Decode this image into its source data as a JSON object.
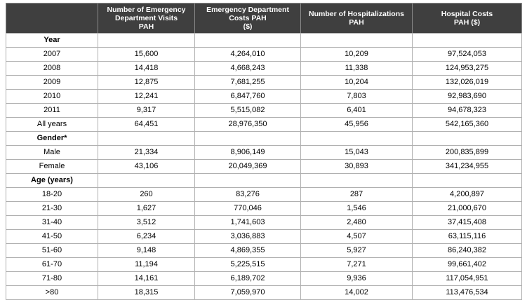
{
  "colors": {
    "header_bg": "#3f3f3f",
    "header_text": "#ffffff",
    "border": "#b0b0b0",
    "body_text": "#000000"
  },
  "table": {
    "columns": [
      {
        "label": ""
      },
      {
        "label": "Number of Emergency\nDepartment Visits\nPAH"
      },
      {
        "label": "Emergency Department\nCosts PAH\n($)"
      },
      {
        "label": "Number of Hospitalizations\nPAH"
      },
      {
        "label": "Hospital Costs\nPAH ($)"
      }
    ],
    "rows": [
      {
        "type": "section",
        "label": "Year",
        "values": [
          "",
          "",
          "",
          ""
        ]
      },
      {
        "type": "data",
        "label": "2007",
        "values": [
          "15,600",
          "4,264,010",
          "10,209",
          "97,524,053"
        ]
      },
      {
        "type": "data",
        "label": "2008",
        "values": [
          "14,418",
          "4,668,243",
          "11,338",
          "124,953,275"
        ]
      },
      {
        "type": "data",
        "label": "2009",
        "values": [
          "12,875",
          "7,681,255",
          "10,204",
          "132,026,019"
        ]
      },
      {
        "type": "data",
        "label": "2010",
        "values": [
          "12,241",
          "6,847,760",
          "7,803",
          "92,983,690"
        ]
      },
      {
        "type": "data",
        "label": "2011",
        "values": [
          "9,317",
          "5,515,082",
          "6,401",
          "94,678,323"
        ]
      },
      {
        "type": "data",
        "label": "All years",
        "values": [
          "64,451",
          "28,976,350",
          "45,956",
          "542,165,360"
        ]
      },
      {
        "type": "section",
        "label": "Gender*",
        "values": [
          "",
          "",
          "",
          ""
        ]
      },
      {
        "type": "data",
        "label": "Male",
        "values": [
          "21,334",
          "8,906,149",
          "15,043",
          "200,835,899"
        ]
      },
      {
        "type": "data",
        "label": "Female",
        "values": [
          "43,106",
          "20,049,369",
          "30,893",
          "341,234,955"
        ]
      },
      {
        "type": "section",
        "label": "Age (years)",
        "values": [
          "",
          "",
          "",
          ""
        ]
      },
      {
        "type": "data",
        "label": "18-20",
        "values": [
          "260",
          "83,276",
          "287",
          "4,200,897"
        ]
      },
      {
        "type": "data",
        "label": "21-30",
        "values": [
          "1,627",
          "770,046",
          "1,546",
          "21,000,670"
        ]
      },
      {
        "type": "data",
        "label": "31-40",
        "values": [
          "3,512",
          "1,741,603",
          "2,480",
          "37,415,408"
        ]
      },
      {
        "type": "data",
        "label": "41-50",
        "values": [
          "6,234",
          "3,036,883",
          "4,507",
          "63,115,116"
        ]
      },
      {
        "type": "data",
        "label": "51-60",
        "values": [
          "9,148",
          "4,869,355",
          "5,927",
          "86,240,382"
        ]
      },
      {
        "type": "data",
        "label": "61-70",
        "values": [
          "11,194",
          "5,225,515",
          "7,271",
          "99,661,402"
        ]
      },
      {
        "type": "data",
        "label": "71-80",
        "values": [
          "14,161",
          "6,189,702",
          "9,936",
          "117,054,951"
        ]
      },
      {
        "type": "data",
        "label": ">80",
        "values": [
          "18,315",
          "7,059,970",
          "14,002",
          "113,476,534"
        ]
      }
    ]
  }
}
